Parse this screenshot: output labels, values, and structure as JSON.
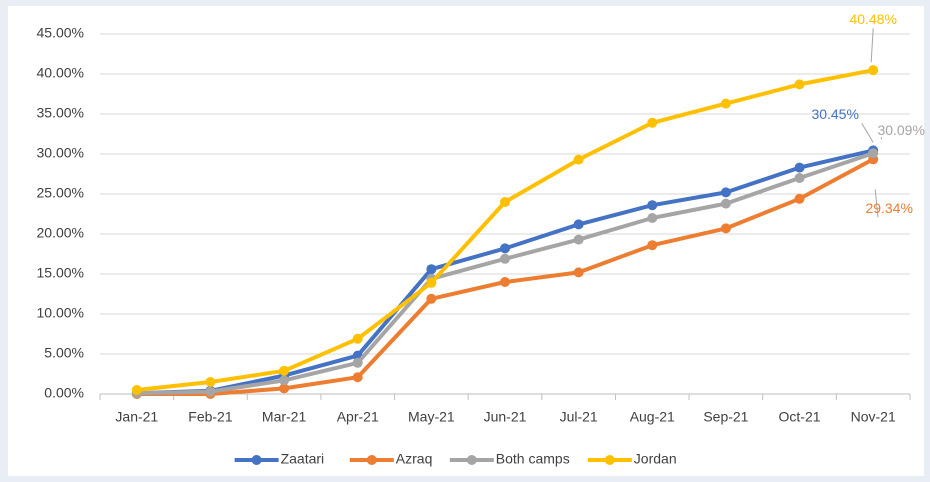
{
  "chart_data": {
    "type": "line",
    "categories": [
      "Jan-21",
      "Feb-21",
      "Mar-21",
      "Apr-21",
      "May-21",
      "Jun-21",
      "Jul-21",
      "Aug-21",
      "Sep-21",
      "Oct-21",
      "Nov-21"
    ],
    "series": [
      {
        "name": "Zaatari",
        "color": "#4472c4",
        "values": [
          0.1,
          0.4,
          2.3,
          4.8,
          15.6,
          18.2,
          21.2,
          23.6,
          25.2,
          28.3,
          30.45
        ],
        "value_labels": [
          null,
          null,
          null,
          null,
          null,
          null,
          null,
          null,
          null,
          null,
          "30.45%"
        ]
      },
      {
        "name": "Azraq",
        "color": "#ed7d31",
        "values": [
          0,
          0,
          0.7,
          2.1,
          11.9,
          14.0,
          15.2,
          18.6,
          20.7,
          24.4,
          29.34
        ],
        "value_labels": [
          null,
          null,
          null,
          null,
          null,
          null,
          null,
          null,
          null,
          null,
          "29.34%"
        ]
      },
      {
        "name": "Both camps",
        "color": "#a5a5a5",
        "values": [
          0.1,
          0.3,
          1.7,
          3.9,
          14.4,
          16.9,
          19.3,
          22.0,
          23.8,
          27.0,
          30.09
        ],
        "value_labels": [
          null,
          null,
          null,
          null,
          null,
          null,
          null,
          null,
          null,
          null,
          "30.09%"
        ]
      },
      {
        "name": "Jordan",
        "color": "#ffc000",
        "values": [
          0.5,
          1.5,
          2.9,
          6.9,
          13.9,
          24.0,
          29.3,
          33.9,
          36.3,
          38.7,
          40.48
        ],
        "value_labels": [
          null,
          null,
          null,
          null,
          null,
          null,
          null,
          null,
          null,
          null,
          "40.48%"
        ]
      }
    ],
    "ylim": [
      0,
      45
    ],
    "yticks": [
      {
        "value": 0,
        "label": "0.00%"
      },
      {
        "value": 5,
        "label": "5.00%"
      },
      {
        "value": 10,
        "label": "10.00%"
      },
      {
        "value": 15,
        "label": "15.00%"
      },
      {
        "value": 20,
        "label": "20.00%"
      },
      {
        "value": 25,
        "label": "25.00%"
      },
      {
        "value": 30,
        "label": "30.00%"
      },
      {
        "value": 35,
        "label": "35.00%"
      },
      {
        "value": 40,
        "label": "40.00%"
      },
      {
        "value": 45,
        "label": "45.00%"
      }
    ],
    "grid": true,
    "legend": "bottom"
  }
}
